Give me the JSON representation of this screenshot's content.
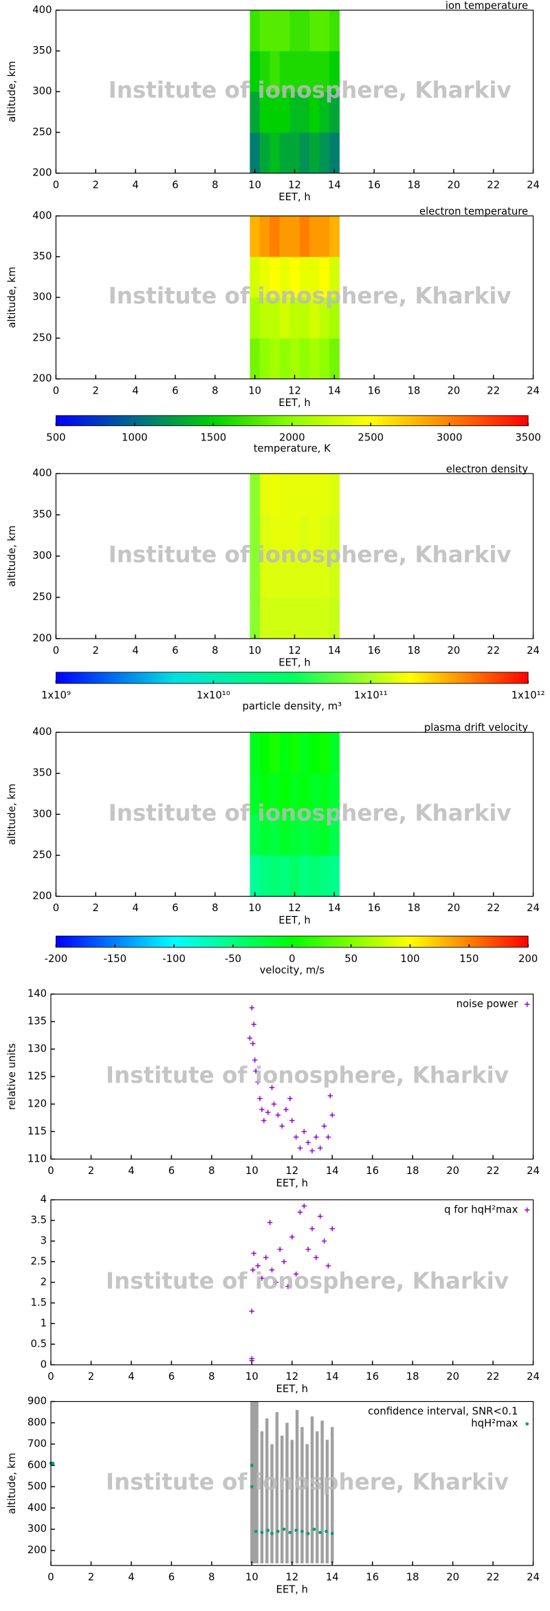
{
  "watermark": "Institute of ionosphere, Kharkiv",
  "chart_data": [
    {
      "type": "heatmap",
      "title": "ion temperature",
      "xlabel": "EET, h",
      "ylabel": "altitude, km",
      "xlim": [
        0,
        24
      ],
      "xticks": [
        0,
        2,
        4,
        6,
        8,
        10,
        12,
        14,
        16,
        18,
        20,
        22,
        24
      ],
      "ylim": [
        200,
        400
      ],
      "yticks": [
        200,
        250,
        300,
        350,
        400
      ],
      "x": [
        10,
        10.5,
        11,
        11.5,
        12,
        12.5,
        13,
        13.5,
        14
      ],
      "y": [
        225,
        275,
        325,
        375
      ],
      "z": [
        [
          1100,
          1300,
          1400,
          1300,
          1300,
          1200,
          1300,
          1200,
          1100
        ],
        [
          1300,
          1500,
          1500,
          1500,
          1400,
          1400,
          1500,
          1400,
          1300
        ],
        [
          1500,
          1600,
          1700,
          1600,
          1600,
          1600,
          1600,
          1600,
          1500
        ],
        [
          1700,
          1800,
          1800,
          1800,
          1700,
          1700,
          1800,
          1800,
          1700
        ]
      ],
      "zlim": [
        500,
        3500
      ],
      "colormap": [
        "#0000ff",
        "#006a8a",
        "#00d000",
        "#90ff00",
        "#ffff00",
        "#ff8000",
        "#ff0000"
      ]
    },
    {
      "type": "heatmap",
      "title": "electron temperature",
      "xlabel": "EET, h",
      "ylabel": "altitude, km",
      "xlim": [
        0,
        24
      ],
      "xticks": [
        0,
        2,
        4,
        6,
        8,
        10,
        12,
        14,
        16,
        18,
        20,
        22,
        24
      ],
      "ylim": [
        200,
        400
      ],
      "yticks": [
        200,
        250,
        300,
        350,
        400
      ],
      "x": [
        10,
        10.5,
        11,
        11.5,
        12,
        12.5,
        13,
        13.5,
        14
      ],
      "y": [
        225,
        275,
        325,
        375
      ],
      "z": [
        [
          1900,
          2000,
          2100,
          2000,
          2100,
          2000,
          2100,
          2000,
          1900
        ],
        [
          2100,
          2200,
          2200,
          2300,
          2200,
          2200,
          2300,
          2200,
          2100
        ],
        [
          2300,
          2400,
          2500,
          2400,
          2500,
          2400,
          2400,
          2500,
          2300
        ],
        [
          2800,
          2900,
          3000,
          2900,
          2900,
          3000,
          2900,
          2900,
          2800
        ]
      ],
      "zlim": [
        500,
        3500
      ],
      "colormap": [
        "#0000ff",
        "#006a8a",
        "#00d000",
        "#90ff00",
        "#ffff00",
        "#ff8000",
        "#ff0000"
      ],
      "colorbar": {
        "label": "temperature, K",
        "lim": [
          500,
          3500
        ],
        "ticks": [
          500,
          1000,
          1500,
          2000,
          2500,
          3000,
          3500
        ]
      }
    },
    {
      "type": "heatmap",
      "title": "electron density",
      "xlabel": "EET, h",
      "ylabel": "altitude, km",
      "xlim": [
        0,
        24
      ],
      "xticks": [
        0,
        2,
        4,
        6,
        8,
        10,
        12,
        14,
        16,
        18,
        20,
        22,
        24
      ],
      "ylim": [
        200,
        400
      ],
      "yticks": [
        200,
        250,
        300,
        350,
        400
      ],
      "x": [
        10,
        10.5,
        11,
        11.5,
        12,
        12.5,
        13,
        13.5,
        14
      ],
      "y": [
        225,
        275,
        325,
        375
      ],
      "z": [
        [
          80000000000,
          130000000000,
          130000000000,
          130000000000,
          130000000000,
          130000000000,
          130000000000,
          130000000000,
          120000000000
        ],
        [
          80000000000,
          140000000000,
          140000000000,
          140000000000,
          140000000000,
          140000000000,
          140000000000,
          140000000000,
          130000000000
        ],
        [
          80000000000,
          140000000000,
          150000000000,
          150000000000,
          150000000000,
          140000000000,
          150000000000,
          140000000000,
          130000000000
        ],
        [
          80000000000,
          150000000000,
          160000000000,
          150000000000,
          150000000000,
          150000000000,
          150000000000,
          150000000000,
          140000000000
        ]
      ],
      "zlim": [
        1000000000,
        1000000000000
      ],
      "zlog": true,
      "colormap": [
        "#0000ff",
        "#00e0e0",
        "#00ff60",
        "#ffff00",
        "#ff0000"
      ],
      "colorbar": {
        "label": "particle density, m³",
        "lim": [
          1000000000,
          1000000000000
        ],
        "log": true,
        "ticks": [
          {
            "value": 1000000000,
            "label": "1x10⁹"
          },
          {
            "value": 10000000000,
            "label": "1x10¹⁰"
          },
          {
            "value": 100000000000,
            "label": "1x10¹¹"
          },
          {
            "value": 1000000000000,
            "label": "1x10¹²"
          }
        ]
      }
    },
    {
      "type": "heatmap",
      "title": "plasma drift velocity",
      "xlabel": "EET, h",
      "ylabel": "altitude, km",
      "xlim": [
        0,
        24
      ],
      "xticks": [
        0,
        2,
        4,
        6,
        8,
        10,
        12,
        14,
        16,
        18,
        20,
        22,
        24
      ],
      "ylim": [
        200,
        400
      ],
      "yticks": [
        200,
        250,
        300,
        350,
        400
      ],
      "x": [
        10,
        10.5,
        11,
        11.5,
        12,
        12.5,
        13,
        13.5,
        14
      ],
      "y": [
        225,
        275,
        325,
        375
      ],
      "z": [
        [
          -60,
          -50,
          -45,
          -50,
          -40,
          -50,
          -45,
          -50,
          -55
        ],
        [
          -30,
          -20,
          -25,
          -15,
          -20,
          -25,
          -20,
          -15,
          -30
        ],
        [
          -15,
          -5,
          -10,
          0,
          -10,
          -5,
          -15,
          -10,
          -20
        ],
        [
          -10,
          0,
          10,
          -5,
          5,
          -10,
          0,
          5,
          -15
        ]
      ],
      "zlim": [
        -200,
        200
      ],
      "colormap": [
        "#0000ff",
        "#00ffff",
        "#00ff00",
        "#ffff00",
        "#ff0000"
      ],
      "colorbar": {
        "label": "velocity, m/s",
        "lim": [
          -200,
          200
        ],
        "ticks": [
          -200,
          -150,
          -100,
          -50,
          0,
          50,
          100,
          150,
          200
        ]
      }
    },
    {
      "type": "scatter",
      "xlabel": "EET, h",
      "ylabel": "relative units",
      "xlim": [
        0,
        24
      ],
      "xticks": [
        0,
        2,
        4,
        6,
        8,
        10,
        12,
        14,
        16,
        18,
        20,
        22,
        24
      ],
      "ylim": [
        110,
        140
      ],
      "yticks": [
        110,
        115,
        120,
        125,
        130,
        135,
        140
      ],
      "series": [
        {
          "name": "noise power",
          "color": "#9400d3",
          "marker": "plus",
          "x": [
            9.9,
            10,
            10.05,
            10.1,
            10.15,
            10.2,
            10.3,
            10.4,
            10.5,
            10.6,
            10.8,
            11,
            11.1,
            11.3,
            11.5,
            11.7,
            11.9,
            12,
            12.2,
            12.4,
            12.6,
            12.8,
            13,
            13.2,
            13.4,
            13.6,
            13.8,
            13.9,
            14
          ],
          "values": [
            132,
            137.5,
            131,
            134.5,
            128,
            126,
            124,
            121,
            119,
            117,
            118.5,
            123,
            120,
            118,
            116,
            119,
            121,
            117,
            114,
            112,
            115,
            113,
            111.5,
            114,
            112,
            116,
            114,
            121.5,
            118
          ]
        }
      ]
    },
    {
      "type": "scatter",
      "xlim": [
        0,
        24
      ],
      "xlabel": "EET, h",
      "xticks": [
        0,
        2,
        4,
        6,
        8,
        10,
        12,
        14,
        16,
        18,
        20,
        22,
        24
      ],
      "ylim": [
        0,
        4
      ],
      "yticks": [
        0,
        0.5,
        1,
        1.5,
        2,
        2.5,
        3,
        3.5,
        4
      ],
      "series": [
        {
          "name": "q for hqH²max",
          "color": "#9400d3",
          "marker": "plus",
          "x": [
            10,
            10,
            10,
            10.05,
            10.1,
            10.3,
            10.5,
            10.7,
            10.9,
            11,
            11.2,
            11.4,
            11.6,
            11.8,
            12,
            12.2,
            12.4,
            12.6,
            12.8,
            13,
            13.2,
            13.4,
            13.6,
            13.8,
            14
          ],
          "values": [
            0.1,
            0.15,
            1.3,
            2.3,
            2.7,
            2.4,
            2.1,
            2.6,
            3.45,
            2.3,
            2,
            2.8,
            2.5,
            1.9,
            3.1,
            2.2,
            3.7,
            3.85,
            2.8,
            3.3,
            2.6,
            3.6,
            3,
            2.4,
            3.3
          ]
        }
      ]
    },
    {
      "type": "scatter",
      "xlabel": "EET, h",
      "ylabel": "altitude, km",
      "xlim": [
        0,
        24
      ],
      "xticks": [
        0,
        2,
        4,
        6,
        8,
        10,
        12,
        14,
        16,
        18,
        20,
        22,
        24
      ],
      "ylim": [
        130,
        900
      ],
      "yticks": [
        200,
        300,
        400,
        500,
        600,
        700,
        800,
        900
      ],
      "series": [
        {
          "name": "confidence interval, SNR<0.1",
          "color": "#a0a0a0",
          "marker": "interval",
          "x": [
            10,
            10.1,
            10.25,
            10.5,
            10.75,
            11,
            11.25,
            11.5,
            11.75,
            12,
            12.25,
            12.5,
            12.75,
            13,
            13.25,
            13.5,
            13.75,
            14
          ],
          "low": [
            140,
            140,
            140,
            140,
            140,
            140,
            140,
            140,
            140,
            140,
            140,
            140,
            140,
            140,
            140,
            140,
            140,
            140
          ],
          "values": [
            900,
            900,
            900,
            760,
            820,
            700,
            850,
            740,
            800,
            720,
            860,
            780,
            700,
            830,
            760,
            810,
            720,
            780
          ]
        },
        {
          "name": "hqH²max",
          "color": "#009e73",
          "marker": "dot",
          "x": [
            0,
            0.1,
            10,
            10,
            10.2,
            10.5,
            10.8,
            11,
            11.3,
            11.6,
            11.9,
            12.2,
            12.5,
            12.8,
            13.1,
            13.4,
            13.7,
            14
          ],
          "values": [
            610,
            610,
            600,
            500,
            290,
            285,
            295,
            280,
            290,
            300,
            285,
            295,
            290,
            280,
            300,
            285,
            290,
            280
          ]
        }
      ]
    }
  ]
}
